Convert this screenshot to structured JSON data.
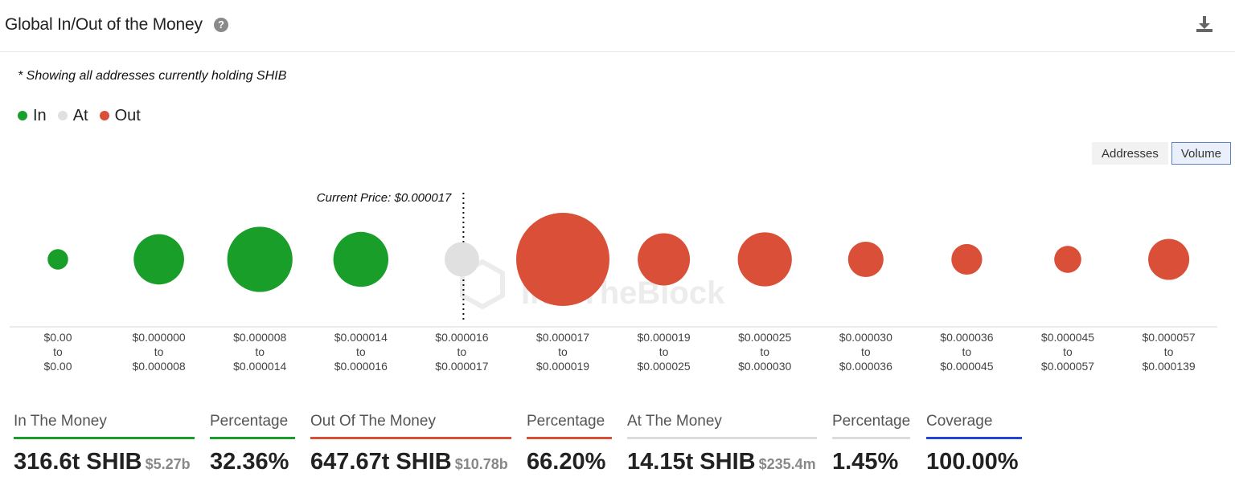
{
  "header": {
    "title": "Global In/Out of the Money",
    "help_icon": "question-circle-icon",
    "download_icon": "download-icon"
  },
  "note": "* Showing all addresses currently holding SHIB",
  "legend": [
    {
      "label": "In",
      "color": "#1a9e2a"
    },
    {
      "label": "At",
      "color": "#e0e0e0"
    },
    {
      "label": "Out",
      "color": "#d94f38"
    }
  ],
  "toggles": [
    {
      "label": "Addresses",
      "active": false
    },
    {
      "label": "Volume",
      "active": true
    }
  ],
  "chart_data": {
    "type": "scatter",
    "current_price_label": "Current Price: $0.000017",
    "watermark": "IntoTheBlock",
    "categories": [
      {
        "from": "$0.00",
        "to": "$0.00",
        "status": "in",
        "relative_size": 0.22
      },
      {
        "from": "$0.000000",
        "to": "$0.000008",
        "status": "in",
        "relative_size": 0.54
      },
      {
        "from": "$0.000008",
        "to": "$0.000014",
        "status": "in",
        "relative_size": 0.7
      },
      {
        "from": "$0.000014",
        "to": "$0.000016",
        "status": "in",
        "relative_size": 0.59
      },
      {
        "from": "$0.000016",
        "to": "$0.000017",
        "status": "at",
        "relative_size": 0.37
      },
      {
        "from": "$0.000017",
        "to": "$0.000019",
        "status": "out",
        "relative_size": 1.0
      },
      {
        "from": "$0.000019",
        "to": "$0.000025",
        "status": "out",
        "relative_size": 0.56
      },
      {
        "from": "$0.000025",
        "to": "$0.000030",
        "status": "out",
        "relative_size": 0.58
      },
      {
        "from": "$0.000030",
        "to": "$0.000036",
        "status": "out",
        "relative_size": 0.38
      },
      {
        "from": "$0.000036",
        "to": "$0.000045",
        "status": "out",
        "relative_size": 0.33
      },
      {
        "from": "$0.000045",
        "to": "$0.000057",
        "status": "out",
        "relative_size": 0.29
      },
      {
        "from": "$0.000057",
        "to": "$0.000139",
        "status": "out",
        "relative_size": 0.44
      }
    ],
    "to_word": "to"
  },
  "stats": [
    {
      "label": "In The Money",
      "value": "316.6t SHIB",
      "sub": "$5.27b",
      "color": "#1a9e2a"
    },
    {
      "label": "Percentage",
      "value": "32.36%",
      "sub": "",
      "color": "#1a9e2a"
    },
    {
      "label": "Out Of The Money",
      "value": "647.67t SHIB",
      "sub": "$10.78b",
      "color": "#d94f38"
    },
    {
      "label": "Percentage",
      "value": "66.20%",
      "sub": "",
      "color": "#d94f38"
    },
    {
      "label": "At The Money",
      "value": "14.15t SHIB",
      "sub": "$235.4m",
      "color": "#dcdcdc"
    },
    {
      "label": "Percentage",
      "value": "1.45%",
      "sub": "",
      "color": "#dcdcdc"
    },
    {
      "label": "Coverage",
      "value": "100.00%",
      "sub": "",
      "color": "#2146d8"
    }
  ]
}
